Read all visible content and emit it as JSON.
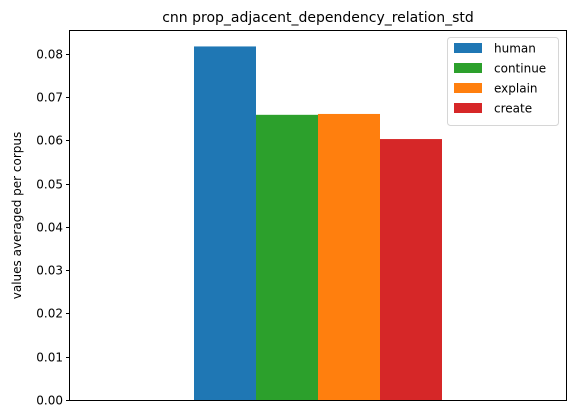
{
  "chart_data": {
    "type": "bar",
    "title": "cnn prop_adjacent_dependency_relation_std",
    "xlabel": "",
    "ylabel": "values averaged per corpus",
    "ylim": [
      0,
      0.0855
    ],
    "yticks": [
      "0.00",
      "0.01",
      "0.02",
      "0.03",
      "0.04",
      "0.05",
      "0.06",
      "0.07",
      "0.08"
    ],
    "ytick_values": [
      0,
      0.01,
      0.02,
      0.03,
      0.04,
      0.05,
      0.06,
      0.07,
      0.08
    ],
    "grid": false,
    "legend_position": "top-right",
    "series": [
      {
        "name": "human",
        "value": 0.0817,
        "color": "#1f77b4"
      },
      {
        "name": "continue",
        "value": 0.0659,
        "color": "#2ca02c"
      },
      {
        "name": "explain",
        "value": 0.0661,
        "color": "#ff7f0e"
      },
      {
        "name": "create",
        "value": 0.0603,
        "color": "#d62728"
      }
    ]
  }
}
